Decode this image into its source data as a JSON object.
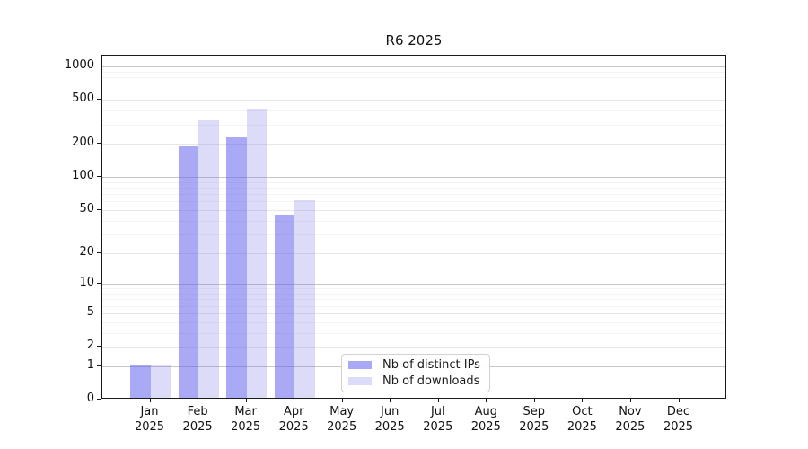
{
  "title": "R6 2025",
  "legend": {
    "items": [
      {
        "label": "Nb of distinct IPs",
        "color": "rgba(99,99,239,0.55)"
      },
      {
        "label": "Nb of downloads",
        "color": "rgba(115,115,231,0.25)"
      }
    ]
  },
  "chart_data": {
    "type": "bar",
    "title": "R6 2025",
    "categories": [
      "Jan 2025",
      "Feb 2025",
      "Mar 2025",
      "Apr 2025",
      "May 2025",
      "Jun 2025",
      "Jul 2025",
      "Aug 2025",
      "Sep 2025",
      "Oct 2025",
      "Nov 2025",
      "Dec 2025"
    ],
    "series": [
      {
        "name": "Nb of distinct IPs",
        "color": "rgba(99,99,239,0.55)",
        "values": [
          1,
          183,
          220,
          44,
          0,
          0,
          0,
          0,
          0,
          0,
          0,
          0
        ]
      },
      {
        "name": "Nb of downloads",
        "color": "rgba(115,115,231,0.25)",
        "values": [
          1,
          318,
          400,
          59,
          0,
          0,
          0,
          0,
          0,
          0,
          0,
          0
        ]
      }
    ],
    "xlabel": "",
    "ylabel": "",
    "y_scale": "log10(1+v)",
    "y_ticks": [
      0,
      1,
      2,
      5,
      10,
      20,
      50,
      100,
      200,
      500,
      1000
    ],
    "y_major_ticks": [
      1,
      10,
      100,
      1000
    ],
    "ylim": [
      0,
      1255
    ],
    "grid": true,
    "legend_position": "inside lower-center"
  }
}
